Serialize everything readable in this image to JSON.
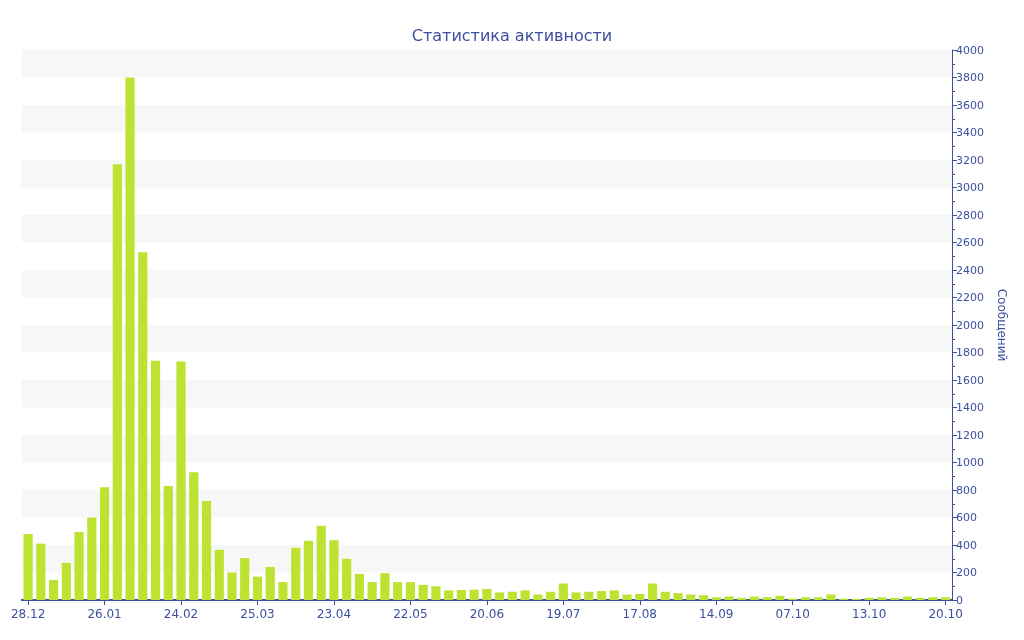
{
  "chart_data": {
    "type": "bar",
    "title": "Статистика активности",
    "ylabel": "Сообщений",
    "categories": [
      "28.12",
      null,
      null,
      null,
      null,
      null,
      "26.01",
      null,
      null,
      null,
      null,
      null,
      "24.02",
      null,
      null,
      null,
      null,
      null,
      "25.03",
      null,
      null,
      null,
      null,
      null,
      "23.04",
      null,
      null,
      null,
      null,
      null,
      "22.05",
      null,
      null,
      null,
      null,
      null,
      "20.06",
      null,
      null,
      null,
      null,
      null,
      "19.07",
      null,
      null,
      null,
      null,
      null,
      "17.08",
      null,
      null,
      null,
      null,
      null,
      "14.09",
      null,
      null,
      null,
      null,
      null,
      "07.10",
      null,
      null,
      null,
      null,
      null,
      "13.10",
      null,
      null,
      null,
      null,
      null,
      "20.10"
    ],
    "values": [
      480,
      410,
      145,
      270,
      495,
      600,
      820,
      3170,
      3800,
      2530,
      1740,
      830,
      1735,
      930,
      720,
      365,
      200,
      305,
      170,
      240,
      130,
      380,
      430,
      540,
      435,
      300,
      190,
      130,
      195,
      130,
      130,
      110,
      100,
      70,
      73,
      75,
      80,
      55,
      60,
      70,
      40,
      60,
      120,
      55,
      60,
      65,
      70,
      40,
      44,
      120,
      60,
      50,
      40,
      35,
      20,
      25,
      15,
      25,
      20,
      30,
      10,
      20,
      20,
      40,
      10,
      8,
      15,
      20,
      15,
      25,
      15,
      20,
      20
    ],
    "color": "#bde232",
    "ylim": [
      0,
      4000
    ],
    "yticks": [
      0,
      200,
      400,
      600,
      800,
      1000,
      1200,
      1400,
      1600,
      1800,
      2000,
      2200,
      2400,
      2600,
      2800,
      3000,
      3200,
      3400,
      3600,
      3800,
      4000
    ],
    "grid": false
  }
}
